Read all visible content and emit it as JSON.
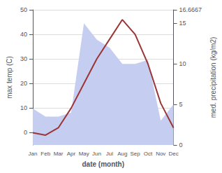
{
  "chart_data": {
    "type": "line",
    "categories": [
      "Jan",
      "Feb",
      "Mar",
      "Apr",
      "May",
      "Jun",
      "Jul",
      "Aug",
      "Sep",
      "Oct",
      "Nov",
      "Dec"
    ],
    "xlabel": "date (month)",
    "ylabel": "max temp (C)",
    "y2label": "med. precipitation (kg/m2)",
    "series": [
      {
        "type": "area",
        "axis": "y2",
        "color": "#c5cdf0",
        "values": [
          4.5,
          3.5,
          3.5,
          4.0,
          15.0,
          13.0,
          12.0,
          10.0,
          10.0,
          10.5,
          3.0,
          5.0
        ]
      },
      {
        "type": "line",
        "color": "#9b3535",
        "values": [
          0.0,
          -1.0,
          2.0,
          10.0,
          20.0,
          30.0,
          38.0,
          46.0,
          40.0,
          28.0,
          12.0,
          2.0
        ]
      }
    ],
    "ylim": [
      -5,
      50
    ],
    "yticks": [
      0,
      10,
      20,
      30,
      40,
      50
    ],
    "y2lim": [
      0,
      16.6667
    ],
    "y2ticks": [
      0,
      5,
      10,
      15
    ],
    "grid": true
  }
}
